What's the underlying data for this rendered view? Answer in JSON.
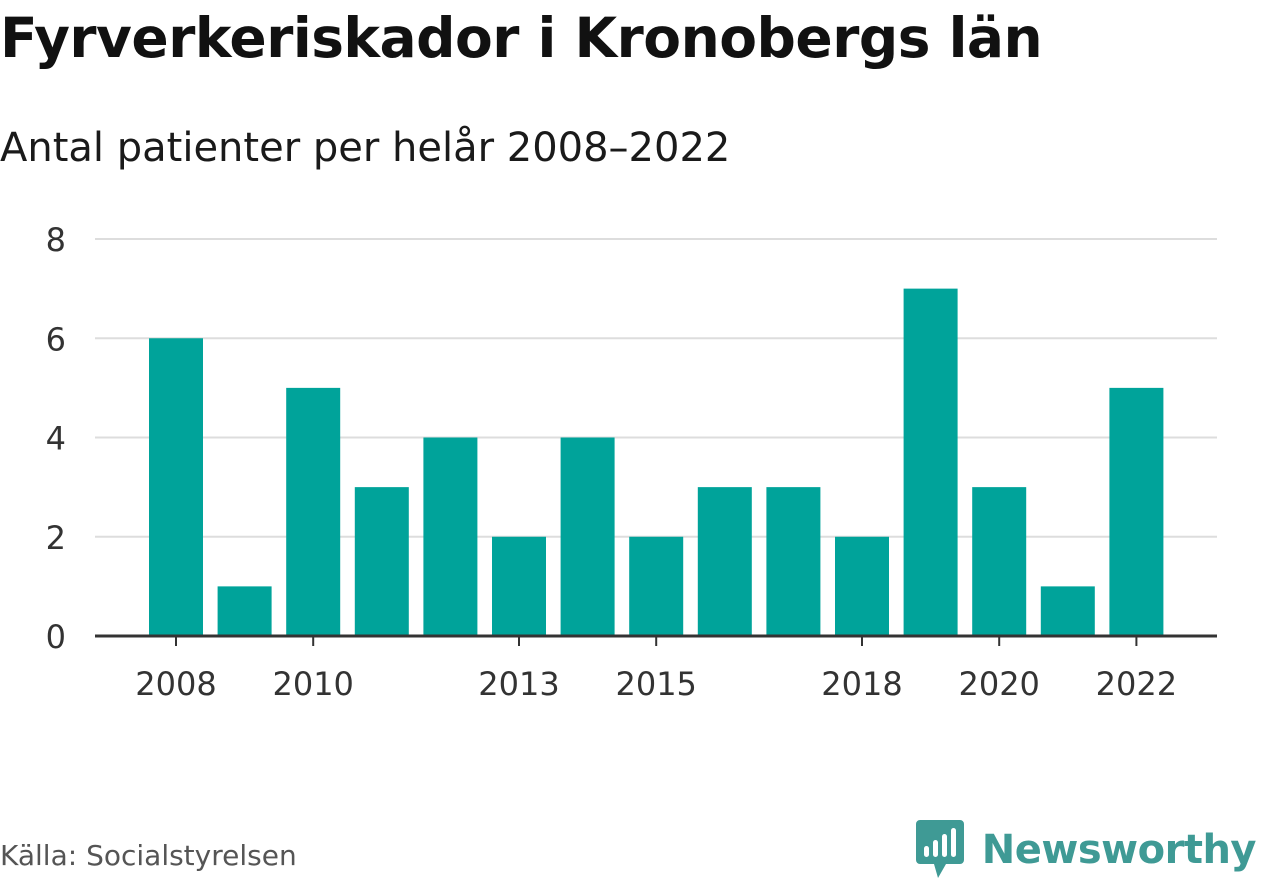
{
  "chart_data": {
    "type": "bar",
    "title": "Fyrverkeriskador i Kronobergs län",
    "subtitle": "Antal patienter per helår 2008–2022",
    "categories": [
      "2008",
      "2009",
      "2010",
      "2011",
      "2012",
      "2013",
      "2014",
      "2015",
      "2016",
      "2017",
      "2018",
      "2019",
      "2020",
      "2021",
      "2022"
    ],
    "values": [
      6,
      1,
      5,
      3,
      4,
      2,
      4,
      2,
      3,
      3,
      2,
      7,
      3,
      1,
      5
    ],
    "x_tick_labels": [
      "2008",
      "2010",
      "2013",
      "2015",
      "2018",
      "2020",
      "2022"
    ],
    "y_ticks": [
      0,
      2,
      4,
      6,
      8
    ],
    "ylim": [
      0,
      8
    ],
    "xlabel": "",
    "ylabel": "",
    "grid": true,
    "bar_color": "#00a39a"
  },
  "footer": {
    "source": "Källa: Socialstyrelsen",
    "brand": "Newsworthy",
    "brand_icon": "newsworthy-logo-icon",
    "brand_color": "#3f9a95"
  }
}
